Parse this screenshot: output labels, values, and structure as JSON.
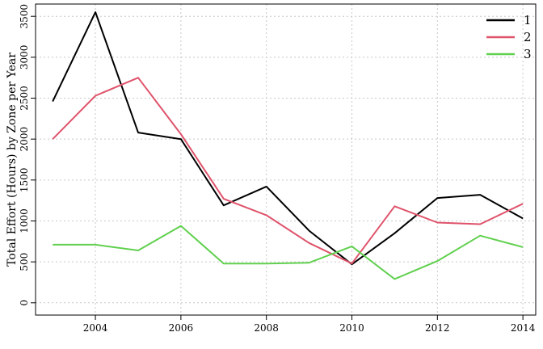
{
  "chart_data": {
    "type": "line",
    "ylabel": "Total Effort (Hours) by Zone per Year",
    "xlabel": "",
    "xlim": [
      2002.6,
      2014.3
    ],
    "ylim": [
      -150,
      3650
    ],
    "x_ticks": [
      2004,
      2006,
      2008,
      2010,
      2012,
      2014
    ],
    "y_ticks": [
      0,
      500,
      1000,
      1500,
      2000,
      2500,
      3000,
      3500
    ],
    "grid": true,
    "legend_position": "top-right",
    "x": [
      2003,
      2004,
      2005,
      2006,
      2007,
      2008,
      2009,
      2010,
      2011,
      2012,
      2013,
      2014
    ],
    "series": [
      {
        "name": "1",
        "color": "#000000",
        "values": [
          2460,
          3550,
          2080,
          2000,
          1190,
          1420,
          880,
          470,
          850,
          1280,
          1320,
          1030
        ]
      },
      {
        "name": "2",
        "color": "#DF536B",
        "values": [
          2000,
          2530,
          2750,
          2060,
          1270,
          1070,
          730,
          480,
          1180,
          980,
          960,
          1210
        ]
      },
      {
        "name": "3",
        "color": "#61D04F",
        "values": [
          710,
          710,
          640,
          940,
          480,
          480,
          490,
          690,
          290,
          510,
          820,
          680
        ]
      }
    ]
  }
}
